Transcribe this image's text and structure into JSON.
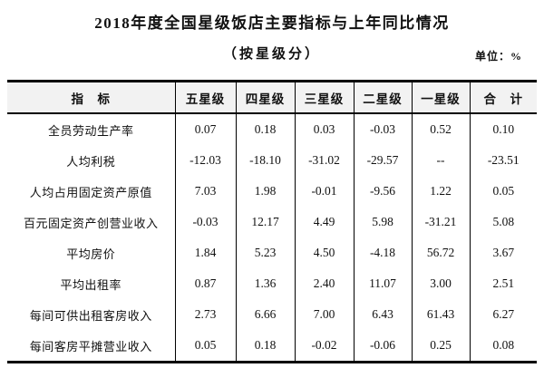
{
  "page": {
    "title": "2018年度全国星级饭店主要指标与上年同比情况",
    "subtitle": "（按星级分）",
    "unit_label": "单位：%"
  },
  "table": {
    "columns": [
      "指　标",
      "五星级",
      "四星级",
      "三星级",
      "二星级",
      "一星级",
      "合　计"
    ],
    "rows": [
      {
        "indicator": "全员劳动生产率",
        "values": [
          "0.07",
          "0.18",
          "0.03",
          "-0.03",
          "0.52",
          "0.10"
        ]
      },
      {
        "indicator": "人均利税",
        "values": [
          "-12.03",
          "-18.10",
          "-31.02",
          "-29.57",
          "--",
          "-23.51"
        ]
      },
      {
        "indicator": "人均占用固定资产原值",
        "values": [
          "7.03",
          "1.98",
          "-0.01",
          "-9.56",
          "1.22",
          "0.05"
        ]
      },
      {
        "indicator": "百元固定资产创营业收入",
        "values": [
          "-0.03",
          "12.17",
          "4.49",
          "5.98",
          "-31.21",
          "5.08"
        ]
      },
      {
        "indicator": "平均房价",
        "values": [
          "1.84",
          "5.23",
          "4.50",
          "-4.18",
          "56.72",
          "3.67"
        ]
      },
      {
        "indicator": "平均出租率",
        "values": [
          "0.87",
          "1.36",
          "2.40",
          "11.07",
          "3.00",
          "2.51"
        ]
      },
      {
        "indicator": "每间可供出租客房收入",
        "values": [
          "2.73",
          "6.66",
          "7.00",
          "6.43",
          "61.43",
          "6.27"
        ]
      },
      {
        "indicator": "每间客房平摊营业收入",
        "values": [
          "0.05",
          "0.18",
          "-0.02",
          "-0.06",
          "0.25",
          "0.08"
        ]
      }
    ]
  },
  "colors": {
    "border": "#000000",
    "header_bg": "#f2f2f2",
    "text": "#111111",
    "background": "#ffffff"
  }
}
